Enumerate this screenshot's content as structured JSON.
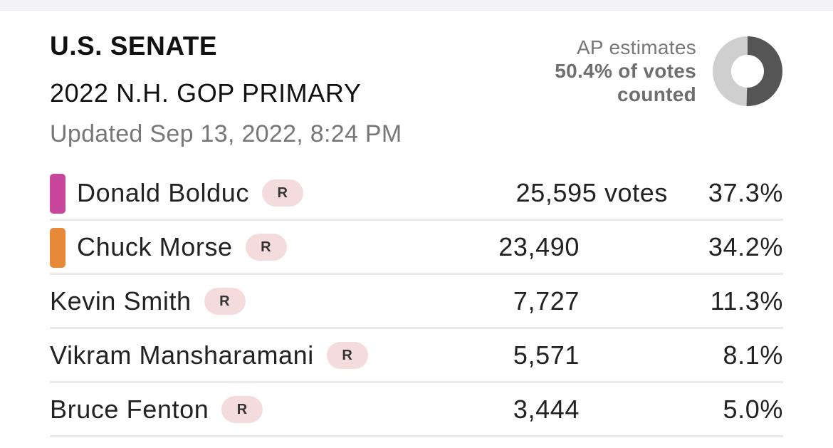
{
  "race": {
    "title": "U.S. SENATE",
    "subtitle": "2022 N.H. GOP PRIMARY",
    "updated": "Updated Sep 13, 2022, 8:24 PM"
  },
  "estimate": {
    "line1": "AP estimates",
    "line2": "50.4% of votes",
    "line3": "counted",
    "fraction_counted": 0.504,
    "donut_colors": {
      "counted": "#555555",
      "remaining": "#cfcfcf"
    }
  },
  "candidates": [
    {
      "name": "Donald Bolduc",
      "party": "R",
      "votes": "25,595 votes",
      "pct": "37.3%",
      "color": "#c9479b"
    },
    {
      "name": "Chuck Morse",
      "party": "R",
      "votes": "23,490",
      "pct": "34.2%",
      "color": "#e68a3a"
    },
    {
      "name": "Kevin Smith",
      "party": "R",
      "votes": "7,727",
      "pct": "11.3%",
      "color": ""
    },
    {
      "name": "Vikram Mansharamani",
      "party": "R",
      "votes": "5,571",
      "pct": "8.1%",
      "color": ""
    },
    {
      "name": "Bruce Fenton",
      "party": "R",
      "votes": "3,444",
      "pct": "5.0%",
      "color": ""
    }
  ]
}
